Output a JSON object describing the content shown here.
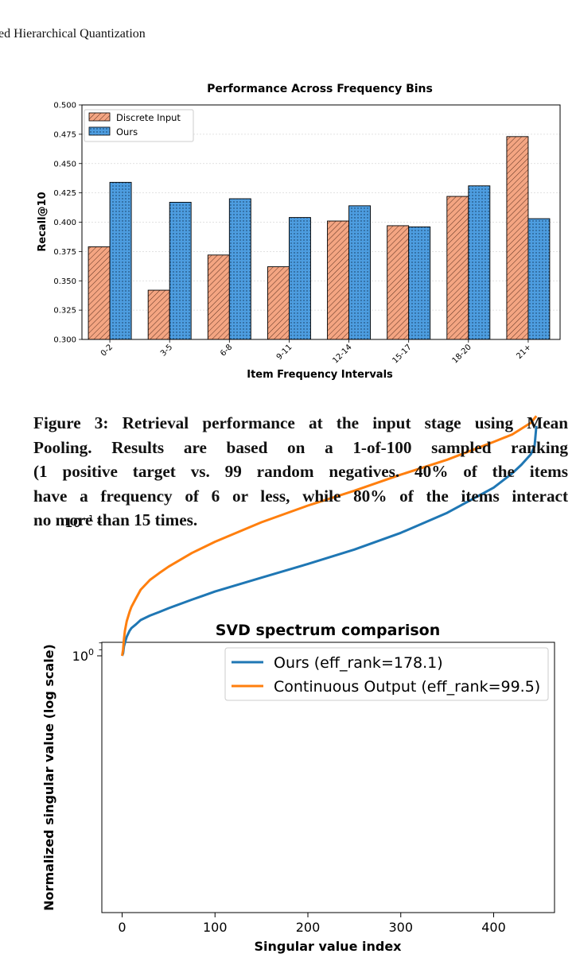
{
  "running_head": "ed Hierarchical Quantization",
  "caption": {
    "lines": [
      "Figure 3: Retrieval performance at the input stage using Mean",
      "Pooling. Results are based on a 1-of-100 sampled ranking",
      "(1 positive target vs. 99 random negatives. 40% of the items",
      "have a frequency of 6 or less, while 80% of the items interact",
      "no more than 15 times."
    ]
  },
  "chart_data": [
    {
      "type": "bar",
      "title": "Performance Across Frequency Bins",
      "xlabel": "Item Frequency Intervals",
      "ylabel": "Recall@10",
      "categories": [
        "0-2",
        "3-5",
        "6-8",
        "9-11",
        "12-14",
        "15-17",
        "18-20",
        "21+"
      ],
      "series": [
        {
          "name": "Discrete Input",
          "color": "#f4a582",
          "hatch": "diagonal",
          "values": [
            0.379,
            0.342,
            0.372,
            0.362,
            0.401,
            0.397,
            0.422,
            0.473
          ]
        },
        {
          "name": "Ours",
          "color": "#4d9de0",
          "hatch": "dots",
          "values": [
            0.434,
            0.417,
            0.42,
            0.404,
            0.414,
            0.396,
            0.431,
            0.403
          ]
        }
      ],
      "ylim": [
        0.3,
        0.5
      ],
      "yticks": [
        "0.300",
        "0.325",
        "0.350",
        "0.375",
        "0.400",
        "0.425",
        "0.450",
        "0.475",
        "0.500"
      ],
      "grid": "y-dashed",
      "legend": "top-left"
    },
    {
      "type": "line",
      "title": "SVD spectrum comparison",
      "xlabel": "Singular value index",
      "ylabel": "Normalized singular value (log scale)",
      "yscale": "log",
      "xticks": [
        "0",
        "100",
        "200",
        "300",
        "400"
      ],
      "legend": "top-right",
      "series": [
        {
          "name": "Ours (eff_rank=178.1)",
          "color": "#1f77b4",
          "x": [
            0,
            1,
            2,
            3,
            5,
            8,
            10,
            15,
            20,
            30,
            40,
            50,
            75,
            100,
            150,
            200,
            250,
            300,
            350,
            400,
            420,
            430,
            440,
            444,
            446
          ],
          "y": [
            1.0,
            0.96,
            0.85,
            0.8,
            0.72,
            0.65,
            0.62,
            0.58,
            0.54,
            0.5,
            0.47,
            0.44,
            0.38,
            0.33,
            0.26,
            0.205,
            0.16,
            0.12,
            0.085,
            0.055,
            0.043,
            0.037,
            0.031,
            0.027,
            0.019
          ]
        },
        {
          "name": "Continuous Output (eff_rank=99.5)",
          "color": "#ff7f0e",
          "x": [
            0,
            1,
            2,
            3,
            5,
            8,
            10,
            15,
            20,
            30,
            40,
            50,
            75,
            100,
            150,
            200,
            250,
            300,
            350,
            400,
            420,
            440,
            446
          ],
          "y": [
            1.0,
            0.9,
            0.75,
            0.65,
            0.55,
            0.47,
            0.43,
            0.37,
            0.32,
            0.27,
            0.24,
            0.215,
            0.17,
            0.14,
            0.1,
            0.075,
            0.058,
            0.044,
            0.034,
            0.025,
            0.022,
            0.018,
            0.016
          ]
        }
      ]
    }
  ]
}
